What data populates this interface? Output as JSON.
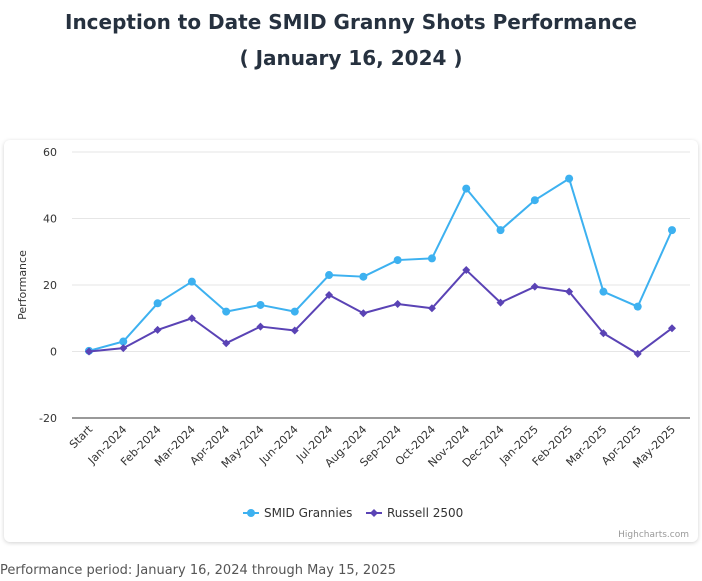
{
  "header": {
    "title_line1": "Inception to Date SMID Granny Shots Performance",
    "title_line2": "( January 16, 2024 )"
  },
  "footer": {
    "period": "Performance period: January 16, 2024 through May 15, 2025"
  },
  "credits": "Highcharts.com",
  "colors": {
    "smid": "#3db1f0",
    "russell": "#5a43b5",
    "grid": "#e6e6e6"
  },
  "chart_data": {
    "type": "line",
    "title": "Inception to Date SMID Granny Shots Performance",
    "subtitle": "( January 16, 2024 )",
    "xlabel": "",
    "ylabel": "Performance",
    "ylim": [
      -20,
      60
    ],
    "yticks": [
      60,
      40,
      20,
      0,
      -20
    ],
    "grid": true,
    "legend_position": "bottom-center",
    "categories": [
      "Start",
      "Jan-2024",
      "Feb-2024",
      "Mar-2024",
      "Apr-2024",
      "May-2024",
      "Jun-2024",
      "Jul-2024",
      "Aug-2024",
      "Sep-2024",
      "Oct-2024",
      "Nov-2024",
      "Dec-2024",
      "Jan-2025",
      "Feb-2025",
      "Mar-2025",
      "Apr-2025",
      "May-2025"
    ],
    "series": [
      {
        "name": "SMID Grannies",
        "marker": "circle",
        "values": [
          0.2,
          3.0,
          14.5,
          21.0,
          12.0,
          14.0,
          12.0,
          23.0,
          22.5,
          27.5,
          28.0,
          49.0,
          36.5,
          45.5,
          52.0,
          18.0,
          13.5,
          36.5
        ]
      },
      {
        "name": "Russell 2500",
        "marker": "diamond",
        "values": [
          0.0,
          1.0,
          6.5,
          10.0,
          2.5,
          7.5,
          6.3,
          17.0,
          11.5,
          14.3,
          13.0,
          24.5,
          14.7,
          19.5,
          18.0,
          5.5,
          -0.7,
          7.0
        ]
      }
    ]
  }
}
